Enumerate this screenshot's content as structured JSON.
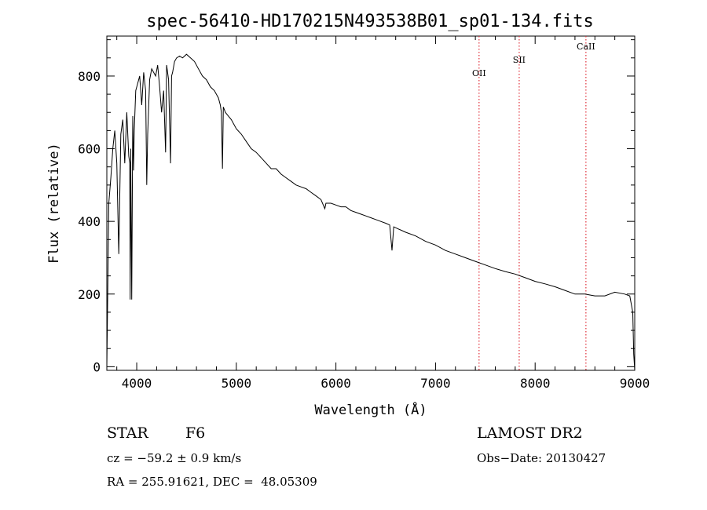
{
  "chart_data": {
    "type": "line",
    "title": "spec-56410-HD170215N493538B01_sp01-134.fits",
    "xlabel": "Wavelength (Å)",
    "ylabel": "Flux (relative)",
    "xlim": [
      3700,
      9000
    ],
    "ylim": [
      -10,
      910
    ],
    "xticks": [
      4000,
      5000,
      6000,
      7000,
      8000,
      9000
    ],
    "yticks": [
      0,
      200,
      400,
      600,
      800
    ],
    "grid": false,
    "series": [
      {
        "x": [
          3700,
          3720,
          3740,
          3760,
          3780,
          3800,
          3820,
          3840,
          3860,
          3880,
          3900,
          3920,
          3930,
          3934,
          3940,
          3950,
          3960,
          3968,
          3975,
          3990,
          4010,
          4030,
          4050,
          4070,
          4090,
          4101,
          4110,
          4130,
          4150,
          4170,
          4190,
          4210,
          4230,
          4250,
          4270,
          4290,
          4300,
          4320,
          4340,
          4350,
          4360,
          4380,
          4400,
          4430,
          4460,
          4500,
          4540,
          4580,
          4620,
          4660,
          4700,
          4740,
          4780,
          4820,
          4840,
          4850,
          4861,
          4870,
          4890,
          4920,
          4950,
          5000,
          5050,
          5100,
          5150,
          5200,
          5250,
          5300,
          5350,
          5400,
          5450,
          5500,
          5550,
          5600,
          5650,
          5700,
          5750,
          5800,
          5850,
          5889,
          5900,
          5950,
          6000,
          6050,
          6100,
          6150,
          6200,
          6250,
          6300,
          6350,
          6400,
          6450,
          6500,
          6540,
          6563,
          6580,
          6620,
          6700,
          6800,
          6900,
          7000,
          7100,
          7200,
          7300,
          7400,
          7500,
          7600,
          7700,
          7800,
          7900,
          8000,
          8100,
          8200,
          8300,
          8400,
          8500,
          8540,
          8600,
          8650,
          8700,
          8800,
          8900,
          8950,
          8980,
          8990,
          9000
        ],
        "y": [
          0,
          450,
          520,
          600,
          650,
          560,
          310,
          640,
          680,
          560,
          700,
          580,
          560,
          185,
          600,
          185,
          690,
          540,
          650,
          760,
          780,
          800,
          720,
          810,
          760,
          500,
          640,
          790,
          820,
          810,
          800,
          830,
          770,
          700,
          760,
          590,
          830,
          790,
          560,
          800,
          810,
          840,
          850,
          855,
          850,
          860,
          850,
          840,
          820,
          800,
          790,
          770,
          760,
          740,
          720,
          700,
          545,
          715,
          700,
          690,
          680,
          655,
          640,
          620,
          600,
          590,
          575,
          560,
          545,
          545,
          530,
          520,
          510,
          500,
          495,
          490,
          480,
          470,
          460,
          435,
          450,
          450,
          445,
          440,
          440,
          430,
          425,
          420,
          415,
          410,
          405,
          400,
          395,
          390,
          320,
          385,
          380,
          370,
          360,
          345,
          335,
          320,
          310,
          300,
          290,
          280,
          270,
          262,
          255,
          245,
          235,
          228,
          220,
          210,
          200,
          200,
          198,
          195,
          195,
          195,
          205,
          200,
          195,
          150,
          35,
          -10
        ]
      }
    ],
    "reference_lines": [
      {
        "label": "OII",
        "x": 7437
      },
      {
        "label": "SII",
        "x": 7840
      },
      {
        "label": "CaII",
        "x": 8510
      }
    ]
  },
  "info": {
    "object_class": "STAR",
    "subclass": "F6",
    "survey": "LAMOST DR2",
    "cz": "cz = −59.2 ± 0.9 km/s",
    "obs_date": "Obs−Date: 20130427",
    "coords": "RA = 255.91621, DEC =  48.05309"
  },
  "colors": {
    "line": "#000000",
    "reference_line": "#e0303a",
    "axis": "#000000"
  }
}
